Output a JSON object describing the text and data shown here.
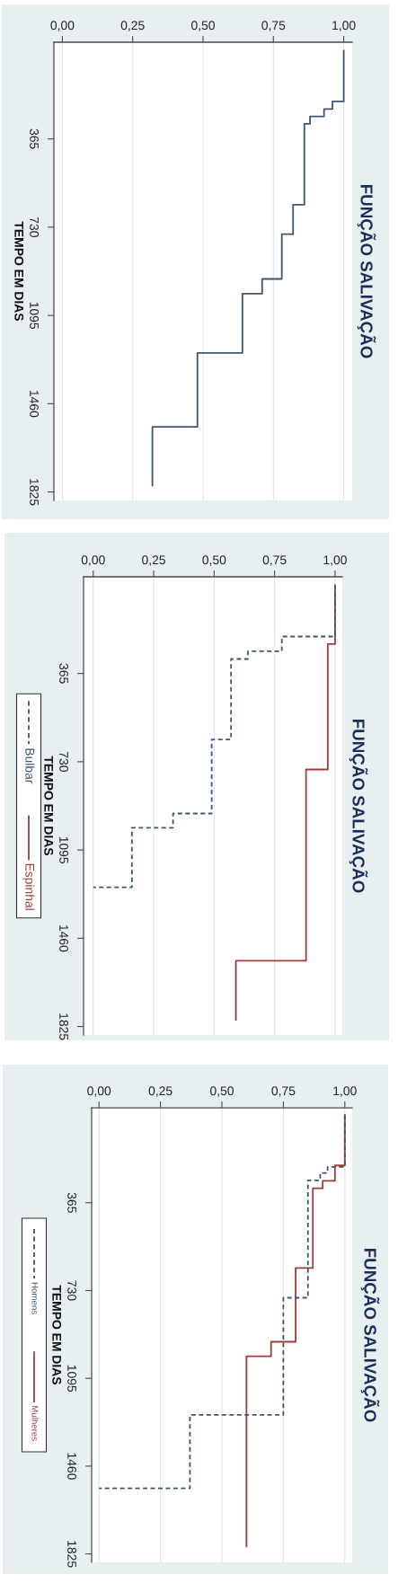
{
  "chart_data": [
    {
      "type": "step",
      "orientation": "horizontal",
      "title": "FUNÇÃO SALIVAÇÃO",
      "ylabel": "TEMPO EM DIAS",
      "grid": "x",
      "xlim": [
        -0.03,
        1.03
      ],
      "xticks": [
        {
          "value": 0,
          "label": "0,00"
        },
        {
          "value": 0.25,
          "label": "0,25"
        },
        {
          "value": 0.5,
          "label": "0,50"
        },
        {
          "value": 0.75,
          "label": "0,75"
        },
        {
          "value": 1,
          "label": "1,00"
        }
      ],
      "ylim": [
        1860,
        -35
      ],
      "yticks": [
        365,
        730,
        1095,
        1460,
        1825
      ],
      "series": [
        {
          "color": "#3e5672",
          "line_style": "solid",
          "x": [
            0,
            210,
            241,
            272,
            303,
            637,
            759,
            944,
            1005,
            1250,
            1556,
            1798
          ],
          "values": [
            1.0,
            0.96,
            0.93,
            0.88,
            0.86,
            0.82,
            0.78,
            0.71,
            0.64,
            0.48,
            0.32,
            0.32
          ]
        }
      ]
    },
    {
      "type": "step",
      "orientation": "horizontal",
      "title": "FUNÇÃO SALIVAÇÃO",
      "ylabel": "TEMPO EM DIAS",
      "grid": "x",
      "legend": "left",
      "xlim": [
        -0.04,
        1.03
      ],
      "xticks": [
        {
          "value": 0,
          "label": "0,00"
        },
        {
          "value": 0.25,
          "label": "0,25"
        },
        {
          "value": 0.5,
          "label": "0,50"
        },
        {
          "value": 0.75,
          "label": "0,75"
        },
        {
          "value": 1,
          "label": "1,00"
        }
      ],
      "ylim": [
        1860,
        -35
      ],
      "yticks": [
        365,
        730,
        1095,
        1460,
        1825
      ],
      "series": [
        {
          "name": "Bulbar",
          "color": "#3e5672",
          "line_style": "dashed",
          "x": [
            0,
            212,
            273,
            305,
            638,
            944,
            1003,
            1249
          ],
          "values": [
            1.0,
            0.78,
            0.64,
            0.57,
            0.49,
            0.33,
            0.16,
            0.0
          ]
        },
        {
          "name": "Espinhal",
          "color": "#a23c3c",
          "line_style": "solid",
          "x": [
            0,
            243,
            762,
            1553,
            1797
          ],
          "values": [
            1.0,
            0.97,
            0.88,
            0.59,
            0.59
          ]
        }
      ]
    },
    {
      "type": "step",
      "orientation": "horizontal",
      "title": "FUNÇÃO SALIVAÇÃO",
      "ylabel": "TEMPO EM DIAS",
      "grid": "x",
      "legend": "left",
      "xlim": [
        -0.03,
        1.03
      ],
      "xticks": [
        {
          "value": 0,
          "label": "0,00"
        },
        {
          "value": 0.25,
          "label": "0,25"
        },
        {
          "value": 0.5,
          "label": "0,50"
        },
        {
          "value": 0.75,
          "label": "0,75"
        },
        {
          "value": 1,
          "label": "1,00"
        }
      ],
      "ylim": [
        1860,
        -30
      ],
      "yticks": [
        365,
        730,
        1095,
        1460,
        1825
      ],
      "series": [
        {
          "name": "Homens",
          "color": "#3e5672",
          "line_style": "dashed",
          "x": [
            0,
            216,
            241,
            272,
            760,
            1247,
            1552
          ],
          "values": [
            1.0,
            0.93,
            0.9,
            0.85,
            0.75,
            0.37,
            0.0
          ]
        },
        {
          "name": "Mulheres",
          "color": "#a23c3c",
          "line_style": "solid",
          "x": [
            0,
            210,
            274,
            305,
            636,
            943,
            1003,
            1794
          ],
          "values": [
            1.0,
            0.96,
            0.91,
            0.87,
            0.8,
            0.7,
            0.6,
            0.6
          ]
        }
      ]
    }
  ]
}
